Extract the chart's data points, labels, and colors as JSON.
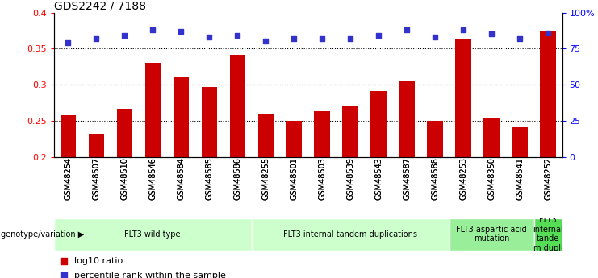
{
  "title": "GDS2242 / 7188",
  "samples": [
    "GSM48254",
    "GSM48507",
    "GSM48510",
    "GSM48546",
    "GSM48584",
    "GSM48585",
    "GSM48586",
    "GSM48255",
    "GSM48501",
    "GSM48503",
    "GSM48539",
    "GSM48543",
    "GSM48587",
    "GSM48588",
    "GSM48253",
    "GSM48350",
    "GSM48541",
    "GSM48252"
  ],
  "log10_ratio": [
    0.258,
    0.232,
    0.267,
    0.33,
    0.31,
    0.297,
    0.341,
    0.26,
    0.25,
    0.263,
    0.27,
    0.291,
    0.305,
    0.25,
    0.363,
    0.255,
    0.242,
    0.375
  ],
  "percentile_rank": [
    79,
    82,
    84,
    88,
    87,
    83,
    84,
    80,
    82,
    82,
    82,
    84,
    88,
    83,
    88,
    85,
    82,
    86
  ],
  "bar_color": "#cc0000",
  "dot_color": "#3333cc",
  "ylim_left": [
    0.2,
    0.4
  ],
  "ylim_right": [
    0,
    100
  ],
  "yticks_left": [
    0.2,
    0.25,
    0.3,
    0.35,
    0.4
  ],
  "yticks_right": [
    0,
    25,
    50,
    75,
    100
  ],
  "ytick_labels_right": [
    "0",
    "25",
    "50",
    "75",
    "100%"
  ],
  "hlines": [
    0.25,
    0.3,
    0.35
  ],
  "groups": [
    {
      "label": "FLT3 wild type",
      "start": 0,
      "end": 7,
      "color": "#ccffcc"
    },
    {
      "label": "FLT3 internal tandem duplications",
      "start": 7,
      "end": 14,
      "color": "#ccffcc"
    },
    {
      "label": "FLT3 aspartic acid\nmutation",
      "start": 14,
      "end": 17,
      "color": "#99ee99"
    },
    {
      "label": "FLT3\ninternal\ntande\nm dupli",
      "start": 17,
      "end": 18,
      "color": "#55dd55"
    }
  ],
  "genotype_label": "genotype/variation",
  "legend_bar_label": "log10 ratio",
  "legend_dot_label": "percentile rank within the sample",
  "bar_width": 0.55
}
